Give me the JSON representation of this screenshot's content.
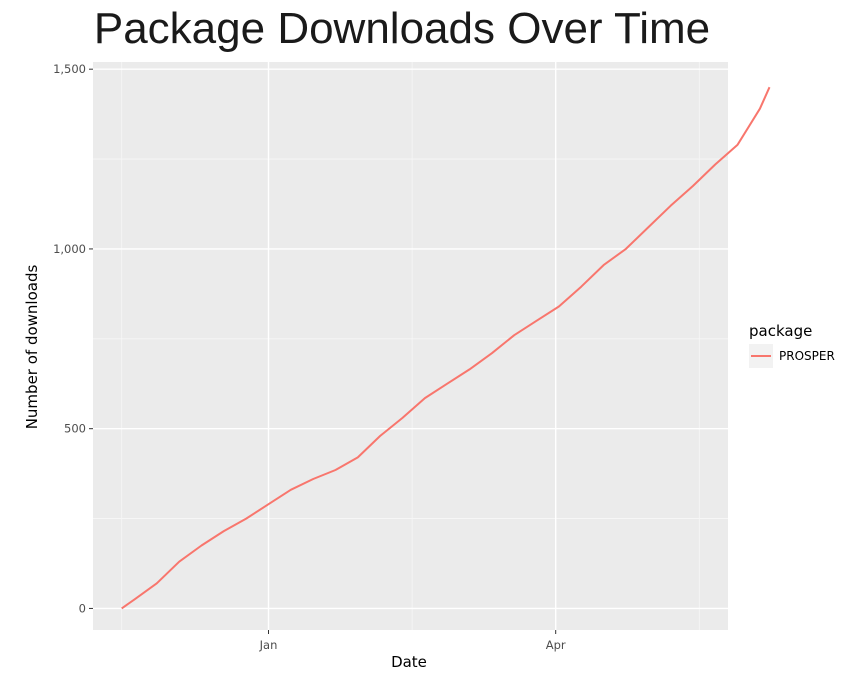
{
  "chart_data": {
    "type": "line",
    "title": "Package Downloads Over Time",
    "xlabel": "Date",
    "ylabel": "Number of downloads",
    "x_tick_labels": [
      "Jan",
      "Apr"
    ],
    "y_tick_labels": [
      "0",
      "500",
      "1,000",
      "1,500"
    ],
    "y_ticks": [
      0,
      500,
      1000,
      1500
    ],
    "ylim": [
      -60,
      1520
    ],
    "xlim": [
      "2016-11-05",
      "2016-05-20"
    ],
    "x_range": [
      "2016-11-07",
      "2017-05-25"
    ],
    "grid": true,
    "legend": {
      "title": "package",
      "position": "right"
    },
    "series": [
      {
        "name": "PROSPER",
        "color": "#F8766D",
        "x": [
          "2016-11-16",
          "2016-11-20",
          "2016-11-27",
          "2016-12-04",
          "2016-12-11",
          "2016-12-18",
          "2016-12-25",
          "2017-01-01",
          "2017-01-08",
          "2017-01-15",
          "2017-01-22",
          "2017-01-29",
          "2017-02-05",
          "2017-02-12",
          "2017-02-19",
          "2017-02-26",
          "2017-03-05",
          "2017-03-12",
          "2017-03-19",
          "2017-03-26",
          "2017-04-02",
          "2017-04-09",
          "2017-04-16",
          "2017-04-23",
          "2017-04-30",
          "2017-05-07",
          "2017-05-14",
          "2017-05-21",
          "2017-05-28",
          "2017-06-04",
          "2017-06-07"
        ],
        "y": [
          0,
          25,
          70,
          130,
          175,
          215,
          250,
          290,
          330,
          360,
          385,
          420,
          480,
          530,
          585,
          625,
          665,
          710,
          760,
          800,
          840,
          895,
          955,
          1000,
          1060,
          1120,
          1175,
          1235,
          1290,
          1390,
          1450
        ]
      }
    ]
  }
}
